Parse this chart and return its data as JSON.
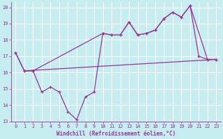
{
  "xlabel": "Windchill (Refroidissement éolien,°C)",
  "bg_color": "#c6edf0",
  "grid_color": "#ffffff",
  "line_color": "#993399",
  "xlim": [
    -0.5,
    23.5
  ],
  "ylim": [
    13,
    20.3
  ],
  "xticks": [
    0,
    1,
    2,
    3,
    4,
    5,
    6,
    7,
    8,
    9,
    10,
    11,
    12,
    13,
    14,
    15,
    16,
    17,
    18,
    19,
    20,
    21,
    22,
    23
  ],
  "yticks": [
    13,
    14,
    15,
    16,
    17,
    18,
    19,
    20
  ],
  "line1_x": [
    0,
    1,
    2,
    3,
    4,
    5,
    6,
    7,
    8,
    9,
    10,
    11,
    12,
    13,
    14,
    15,
    16,
    17,
    18,
    19,
    20,
    21,
    22,
    23
  ],
  "line1_y": [
    17.2,
    16.1,
    16.1,
    14.8,
    15.1,
    14.8,
    13.6,
    13.1,
    14.5,
    14.8,
    18.4,
    18.3,
    18.3,
    19.1,
    18.3,
    18.4,
    18.6,
    19.3,
    19.7,
    19.4,
    20.1,
    17.0,
    16.8,
    16.8
  ],
  "line2_x": [
    0,
    1,
    2,
    10,
    11,
    12,
    13,
    14,
    15,
    16,
    17,
    18,
    19,
    20,
    22,
    23
  ],
  "line2_y": [
    17.2,
    16.1,
    16.1,
    18.4,
    18.3,
    18.3,
    19.1,
    18.3,
    18.4,
    18.6,
    19.3,
    19.7,
    19.4,
    20.1,
    16.8,
    16.8
  ],
  "line3_x": [
    1,
    23
  ],
  "line3_y": [
    16.1,
    16.8
  ]
}
